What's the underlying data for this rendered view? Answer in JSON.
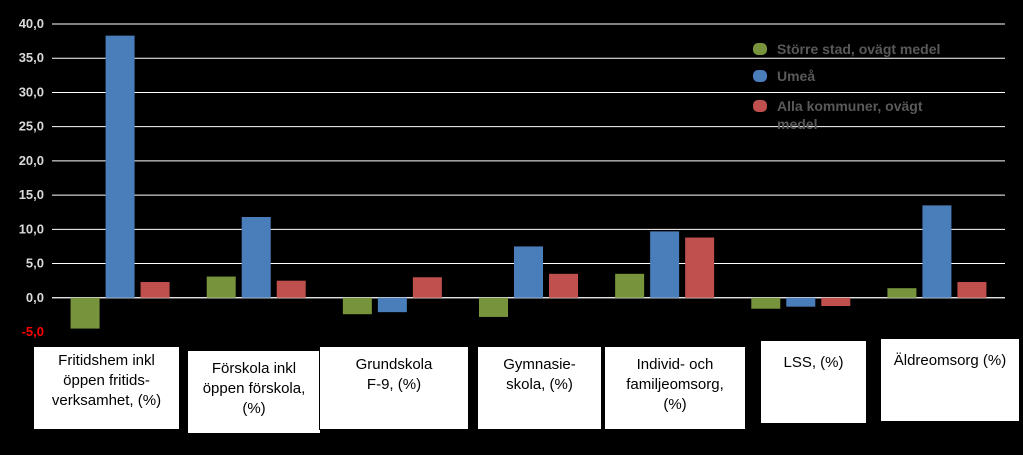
{
  "chart_data": {
    "type": "bar",
    "categories": [
      "Fritidshem inkl öppen fritids-verksamhet, (%)",
      "Förskola inkl öppen förskola, (%)",
      "Grundskola F-9, (%)",
      "Gymnasie-skola, (%)",
      "Individ- och familjeomsorg, (%)",
      "LSS, (%)",
      "Äldreomsorg (%)"
    ],
    "series": [
      {
        "name": "Större stad, ovägt medel",
        "color": "#77933c",
        "values": [
          -4.5,
          3.1,
          -2.4,
          -2.8,
          3.5,
          -1.6,
          1.4
        ]
      },
      {
        "name": "Umeå",
        "color": "#4a7ebb",
        "values": [
          38.3,
          11.8,
          -2.1,
          7.5,
          9.7,
          -1.3,
          13.5
        ]
      },
      {
        "name": "Alla kommuner, ovägt medel",
        "color": "#c0504d",
        "values": [
          2.3,
          2.5,
          3.0,
          3.5,
          8.8,
          -1.2,
          2.3
        ]
      }
    ],
    "ylim": [
      -5,
      40
    ],
    "yticks": [
      "-5,0",
      "0,0",
      "5,0",
      "10,0",
      "15,0",
      "20,0",
      "25,0",
      "30,0",
      "35,0",
      "40,0"
    ],
    "grid": true,
    "legend": "top-right",
    "xlabel": "",
    "ylabel": "",
    "title": ""
  }
}
